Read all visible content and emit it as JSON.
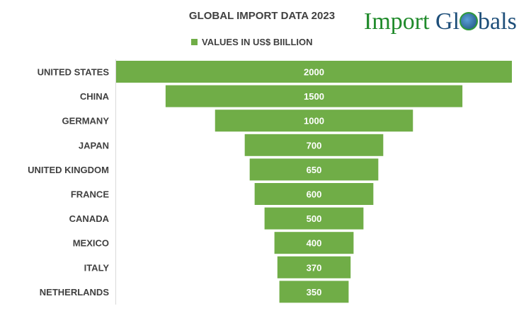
{
  "chart_data": {
    "type": "bar",
    "subtype": "funnel",
    "title": "GLOBAL IMPORT DATA 2023",
    "categories": [
      "UNITED STATES",
      "CHINA",
      "GERMANY",
      "JAPAN",
      "UNITED KINGDOM",
      "FRANCE",
      "CANADA",
      "MEXICO",
      "ITALY",
      "NETHERLANDS"
    ],
    "series": [
      {
        "name": "VALUES IN US$ BIILLION",
        "values": [
          2000,
          1500,
          1000,
          700,
          650,
          600,
          500,
          400,
          370,
          350
        ]
      }
    ],
    "legend": "top",
    "grid": false,
    "color": "#70AD47"
  },
  "logo": {
    "text_1": "Import Gl",
    "text_2": "bals"
  }
}
